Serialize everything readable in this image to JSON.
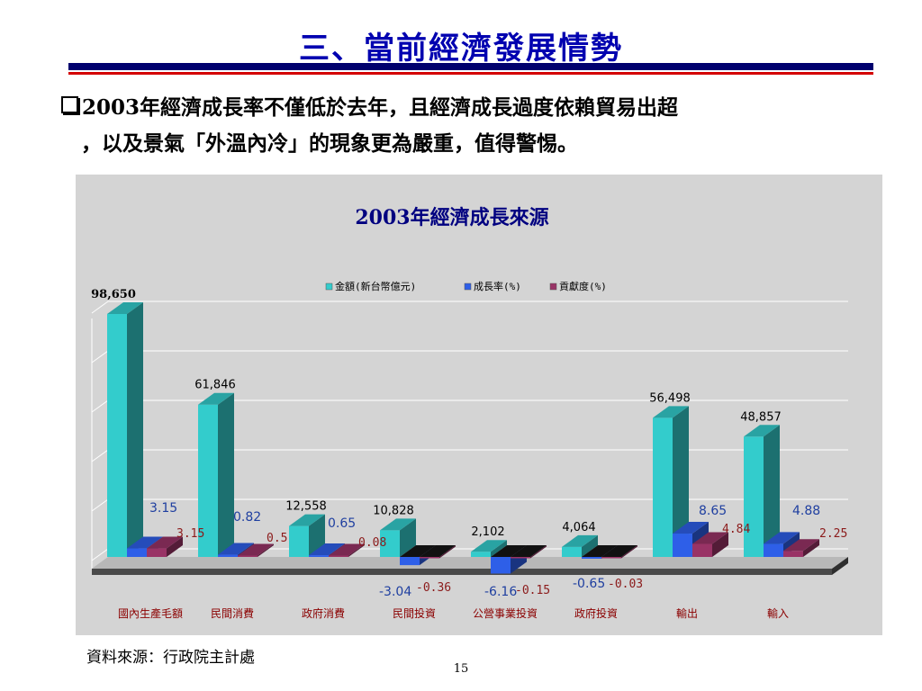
{
  "slide": {
    "title": "三、當前經濟發展情勢",
    "bullet_line1": "2003年經濟成長率不僅低於去年，且經濟成長過度依賴貿易出超",
    "bullet_line2": "，以及景氣「外溫內冷」的現象更為嚴重，值得警惕。",
    "source": "資料來源：行政院主計處",
    "page_number": "15"
  },
  "chart_data": {
    "type": "bar",
    "title": "2003年經濟成長來源",
    "categories": [
      "國內生產毛額",
      "民間消費",
      "政府消費",
      "民間投資",
      "公營事業投資",
      "政府投資",
      "輸出",
      "輸入"
    ],
    "series": [
      {
        "name": "金額(新台幣億元)",
        "color": "#33cccc",
        "values": [
          98650,
          61846,
          12558,
          10828,
          2102,
          4064,
          56498,
          48857
        ],
        "labels": [
          "98,650",
          "61,846",
          "12,558",
          "10,828",
          "2,102",
          "4,064",
          "56,498",
          "48,857"
        ]
      },
      {
        "name": "成長率(%)",
        "color": "#2e5fe8",
        "values": [
          3.15,
          0.82,
          0.65,
          -3.04,
          -6.16,
          -0.65,
          8.65,
          4.88
        ],
        "labels": [
          "3.15",
          "0.82",
          "0.65",
          "-3.04",
          "-6.16",
          "-0.65",
          "8.65",
          "4.88"
        ]
      },
      {
        "name": "貢獻度(%)",
        "color": "#993366",
        "values": [
          3.15,
          0.5,
          0.08,
          -0.36,
          -0.15,
          -0.03,
          4.84,
          2.25
        ],
        "labels": [
          "3.15",
          "0.5",
          "0.08",
          "-0.36",
          "-0.15",
          "-0.03",
          "4.84",
          "2.25"
        ]
      }
    ],
    "grid": true,
    "legend_position": "top"
  }
}
